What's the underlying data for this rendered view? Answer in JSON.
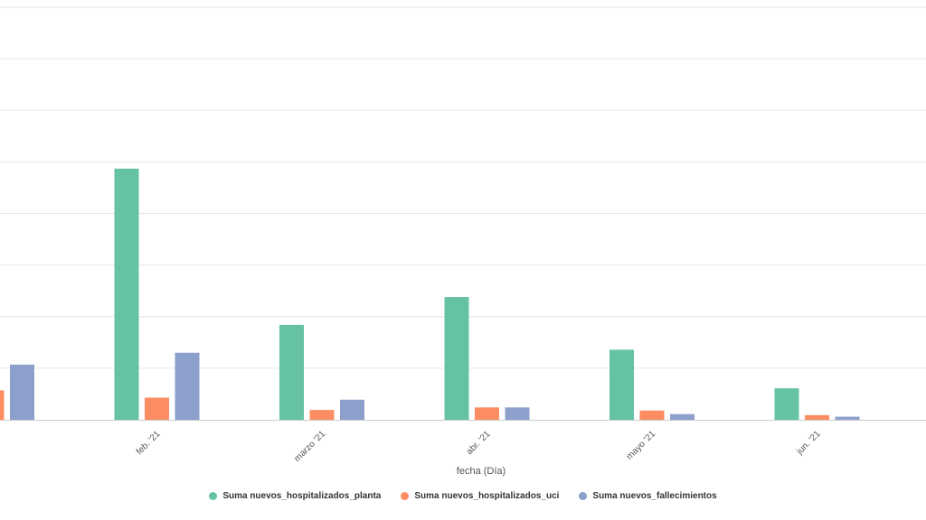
{
  "chart_data": {
    "type": "bar",
    "categories": [
      "",
      "feb. '21",
      "marzo '21",
      "abr. '21",
      "mayo '21",
      "jun. '21"
    ],
    "xlabel": "fecha (Día)",
    "ylabel": "",
    "ylim": [
      0,
      8
    ],
    "grid": true,
    "legend_position": "bottom-center",
    "series": [
      {
        "name": "Suma nuevos_hospitalizados_planta",
        "color": "#66c2a5",
        "values": [
          null,
          4.87,
          1.84,
          2.38,
          1.36,
          0.61
        ]
      },
      {
        "name": "Suma nuevos_hospitalizados_uci",
        "color": "#fc8d62",
        "values": [
          0.57,
          0.43,
          0.19,
          0.24,
          0.18,
          0.09
        ]
      },
      {
        "name": "Suma nuevos_fallecimientos",
        "color": "#8da0cb",
        "values": [
          1.07,
          1.3,
          0.39,
          0.24,
          0.11,
          0.06
        ]
      }
    ]
  }
}
